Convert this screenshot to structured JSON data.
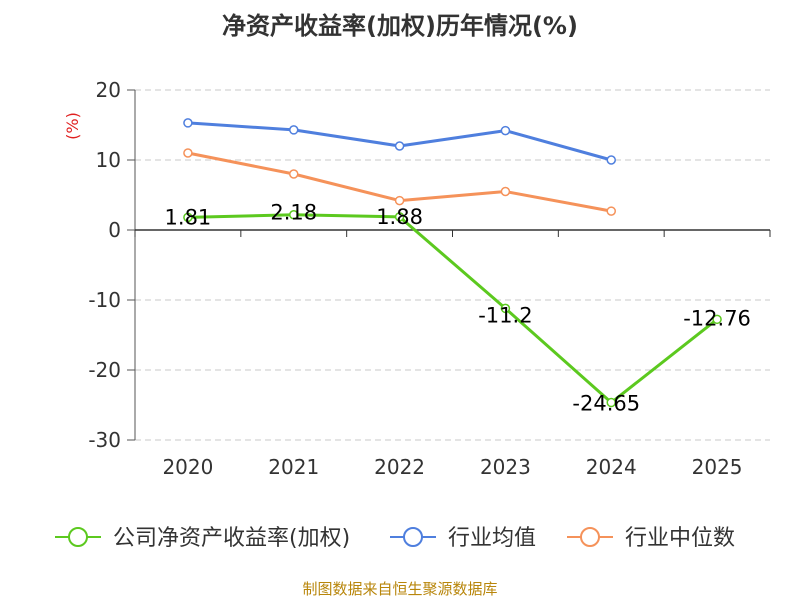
{
  "title": "净资产收益率(加权)历年情况(%)",
  "source": "制图数据来自恒生聚源数据库",
  "chart_data": {
    "type": "line",
    "title": "净资产收益率(加权)历年情况(%)",
    "xlabel": "",
    "ylabel": "(%)",
    "categories": [
      "2020",
      "2021",
      "2022",
      "2023",
      "2024",
      "2025"
    ],
    "ylim": [
      -30,
      20
    ],
    "yticks": [
      20,
      10,
      0,
      -10,
      -20,
      -30
    ],
    "ytick_labels": [
      "20",
      "10",
      "0",
      "-10",
      "-20",
      "-30"
    ],
    "grid": true,
    "legend_position": "bottom",
    "series": [
      {
        "name": "公司净资产收益率(加权)",
        "color": "#5cc91f",
        "values": [
          1.81,
          2.18,
          1.88,
          -11.2,
          -24.65,
          -12.76
        ],
        "labels": [
          "1.81",
          "2.18",
          "1.88",
          "-11.2",
          "-24.65",
          "-12.76"
        ],
        "show_labels": true
      },
      {
        "name": "行业均值",
        "color": "#4f7fde",
        "values": [
          15.3,
          14.3,
          12.0,
          14.2,
          10.0,
          null
        ],
        "show_labels": false
      },
      {
        "name": "行业中位数",
        "color": "#f5925a",
        "values": [
          11.0,
          8.0,
          4.2,
          5.5,
          2.7,
          null
        ],
        "show_labels": false
      }
    ]
  }
}
